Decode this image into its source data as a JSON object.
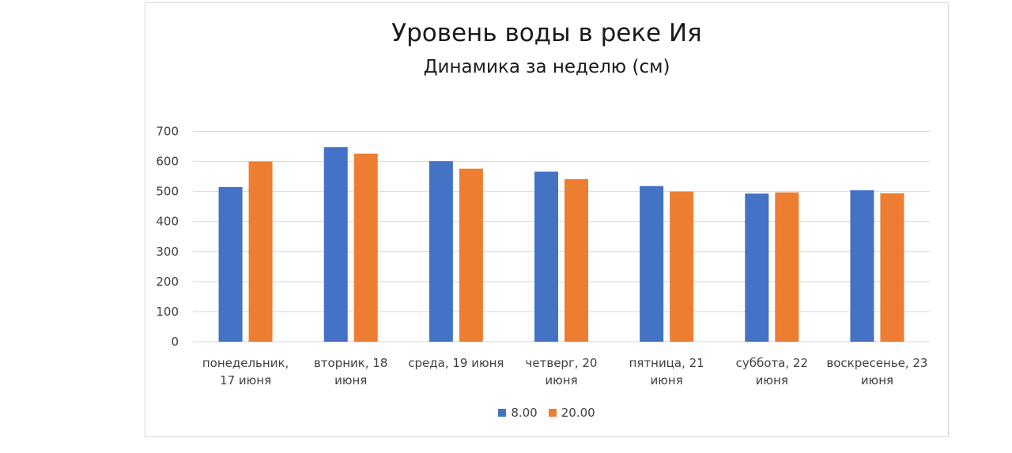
{
  "chart_data": {
    "type": "bar",
    "title": "Уровень воды в реке Ия",
    "subtitle": "Динамика за неделю (см)",
    "categories": [
      [
        "понедельник,",
        "17 июня"
      ],
      [
        "вторник, 18",
        "июня"
      ],
      [
        "среда, 19 июня"
      ],
      [
        "четверг, 20",
        "июня"
      ],
      [
        "пятница, 21",
        "июня"
      ],
      [
        "суббота, 22",
        "июня"
      ],
      [
        "воскресенье, 23",
        "июня"
      ]
    ],
    "series": [
      {
        "name": "8.00",
        "color": "#4472c4",
        "values": [
          515,
          648,
          601,
          566,
          518,
          493,
          504
        ]
      },
      {
        "name": "20.00",
        "color": "#ed7d31",
        "values": [
          600,
          626,
          576,
          541,
          500,
          497,
          494
        ]
      }
    ],
    "yticks": [
      "0",
      "100",
      "200",
      "300",
      "400",
      "500",
      "600",
      "700"
    ],
    "ylim": [
      0,
      700
    ],
    "grid": true,
    "legend_position": "bottom"
  }
}
